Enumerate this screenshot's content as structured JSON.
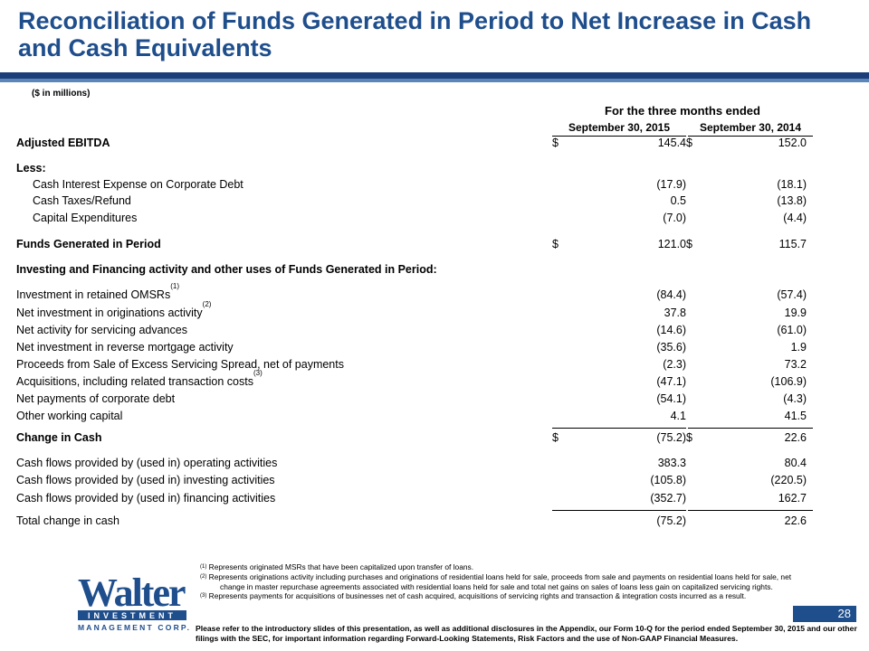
{
  "title": "Reconciliation of Funds Generated in Period to Net Increase in Cash and Cash Equivalents",
  "units_note": "($ in millions)",
  "table": {
    "period_header": "For the three months ended",
    "columns": [
      "September 30, 2015",
      "September 30, 2014"
    ],
    "rows": [
      {
        "label": "Adjusted EBITDA",
        "v1": "145.4",
        "v2": "152.0",
        "cur1": "$",
        "cur2": "$"
      },
      {
        "label": "Less:"
      },
      {
        "label": "Cash Interest Expense on Corporate Debt",
        "v1": "(17.9)",
        "v2": "(18.1)"
      },
      {
        "label": "Cash Taxes/Refund",
        "v1": "0.5",
        "v2": "(13.8)"
      },
      {
        "label": "Capital Expenditures",
        "v1": "(7.0)",
        "v2": "(4.4)"
      },
      {
        "label": "Funds Generated in Period",
        "v1": "121.0",
        "v2": "115.7",
        "cur1": "$",
        "cur2": "$"
      },
      {
        "label": "Investing and Financing activity and other uses of Funds Generated in Period:"
      },
      {
        "label": "Investment in retained OMSRs",
        "sup": "(1)",
        "v1": "(84.4)",
        "v2": "(57.4)"
      },
      {
        "label": "Net investment in originations activity",
        "sup": "(2)",
        "v1": "37.8",
        "v2": "19.9"
      },
      {
        "label": "Net activity for servicing advances",
        "v1": "(14.6)",
        "v2": "(61.0)"
      },
      {
        "label": "Net investment in reverse mortgage activity",
        "v1": "(35.6)",
        "v2": "1.9"
      },
      {
        "label": "Proceeds from Sale of Excess Servicing Spread, net of payments",
        "v1": "(2.3)",
        "v2": "73.2"
      },
      {
        "label": "Acquisitions, including related transaction costs",
        "sup": "(3)",
        "v1": "(47.1)",
        "v2": "(106.9)"
      },
      {
        "label": "Net payments of corporate debt",
        "v1": "(54.1)",
        "v2": "(4.3)"
      },
      {
        "label": "Other working capital",
        "v1": "4.1",
        "v2": "41.5"
      },
      {
        "label": "Change in Cash",
        "v1": "(75.2)",
        "v2": "22.6",
        "cur1": "$",
        "cur2": "$"
      },
      {
        "label": "Cash flows provided by (used in) operating activities",
        "v1": "383.3",
        "v2": "80.4"
      },
      {
        "label": "Cash flows provided by (used in) investing activities",
        "v1": "(105.8)",
        "v2": "(220.5)"
      },
      {
        "label": "Cash flows provided by (used in) financing activities",
        "v1": "(352.7)",
        "v2": "162.7"
      },
      {
        "label": "Total change in cash",
        "v1": "(75.2)",
        "v2": "22.6"
      }
    ]
  },
  "footnotes": {
    "n1": {
      "mark": "(1)",
      "text": "Represents originated MSRs that have been capitalized upon transfer of loans."
    },
    "n2": {
      "mark": "(2)",
      "text": "Represents originations activity including purchases and originations of residential loans held for sale, proceeds from sale and payments on residential loans held for sale, net",
      "text_cont": "change in master repurchase agreements associated with residential loans held for sale and total net gains on sales of loans less gain on capitalized servicing rights."
    },
    "n3": {
      "mark": "(3)",
      "text": "Represents payments for acquisitions of businesses net of cash acquired, acquisitions of servicing rights and transaction & integration costs incurred as a result."
    }
  },
  "disclaimer": "Please refer to the introductory slides of this presentation, as well as additional disclosures in the Appendix, our Form 10-Q for the period ended September 30, 2015 and our other filings with the SEC, for important information regarding Forward-Looking Statements, Risk Factors and the use of Non-GAAP Financial Measures.",
  "logo": {
    "word": "Walter",
    "line1": "INVESTMENT",
    "line2": "MANAGEMENT CORP."
  },
  "page_number": "28",
  "colors": {
    "title": "#1f4e8c",
    "bar_dark": "#1c3f7a",
    "bar_light": "#5c86b8",
    "logo_blue": "#1f4e8c"
  }
}
